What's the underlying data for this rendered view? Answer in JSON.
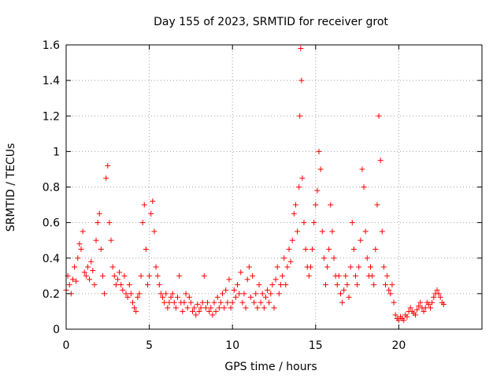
{
  "chart_data": {
    "type": "scatter",
    "title": "Day 155 of 2023, SRMTID for receiver grot",
    "xlabel": "GPS time / hours",
    "ylabel": "SRMTID / TECUs",
    "xlim": [
      0,
      25
    ],
    "ylim": [
      0,
      1.6
    ],
    "x_ticks": [
      0,
      5,
      10,
      15,
      20
    ],
    "x_tick_labels": [
      "0",
      "5",
      "10",
      "15",
      "20"
    ],
    "y_ticks": [
      0,
      0.2,
      0.4,
      0.6,
      0.8,
      1.0,
      1.2,
      1.4,
      1.6
    ],
    "y_tick_labels": [
      "0",
      "0.2",
      "0.4",
      "0.6",
      "0.8",
      "1",
      "1.2",
      "1.4",
      "1.6"
    ],
    "grid": true,
    "marker": "+",
    "marker_color": "#ff0000",
    "series": [
      {
        "name": "SRMTID",
        "x": [
          0.0,
          0.1,
          0.2,
          0.3,
          0.4,
          0.5,
          0.6,
          0.7,
          0.8,
          0.9,
          1.0,
          1.1,
          1.2,
          1.3,
          1.4,
          1.5,
          1.6,
          1.7,
          1.8,
          1.9,
          2.0,
          2.1,
          2.2,
          2.3,
          2.4,
          2.5,
          2.6,
          2.7,
          2.8,
          2.9,
          3.0,
          3.1,
          3.2,
          3.3,
          3.4,
          3.5,
          3.6,
          3.7,
          3.8,
          3.9,
          4.0,
          4.1,
          4.2,
          4.3,
          4.4,
          4.5,
          4.6,
          4.7,
          4.8,
          4.9,
          5.0,
          5.1,
          5.2,
          5.3,
          5.4,
          5.5,
          5.6,
          5.7,
          5.8,
          5.9,
          6.0,
          6.1,
          6.2,
          6.3,
          6.4,
          6.5,
          6.6,
          6.7,
          6.8,
          6.9,
          7.0,
          7.1,
          7.2,
          7.3,
          7.4,
          7.5,
          7.6,
          7.7,
          7.8,
          7.9,
          8.0,
          8.1,
          8.2,
          8.3,
          8.4,
          8.5,
          8.6,
          8.7,
          8.8,
          8.9,
          9.0,
          9.1,
          9.2,
          9.3,
          9.4,
          9.5,
          9.6,
          9.7,
          9.8,
          9.9,
          10.0,
          10.1,
          10.2,
          10.3,
          10.4,
          10.5,
          10.6,
          10.7,
          10.8,
          10.9,
          11.0,
          11.1,
          11.2,
          11.3,
          11.4,
          11.5,
          11.6,
          11.7,
          11.8,
          11.9,
          12.0,
          12.1,
          12.2,
          12.3,
          12.4,
          12.5,
          12.6,
          12.7,
          12.8,
          12.9,
          13.0,
          13.1,
          13.2,
          13.3,
          13.4,
          13.5,
          13.6,
          13.7,
          13.8,
          13.9,
          14.0,
          14.05,
          14.1,
          14.15,
          14.2,
          14.3,
          14.4,
          14.5,
          14.6,
          14.7,
          14.8,
          14.9,
          15.0,
          15.1,
          15.2,
          15.3,
          15.4,
          15.5,
          15.6,
          15.7,
          15.8,
          15.9,
          16.0,
          16.1,
          16.2,
          16.3,
          16.4,
          16.5,
          16.6,
          16.7,
          16.8,
          16.9,
          17.0,
          17.1,
          17.2,
          17.3,
          17.4,
          17.5,
          17.6,
          17.7,
          17.8,
          17.9,
          18.0,
          18.1,
          18.2,
          18.3,
          18.4,
          18.5,
          18.6,
          18.7,
          18.8,
          18.9,
          19.0,
          19.1,
          19.2,
          19.3,
          19.4,
          19.5,
          19.6,
          19.7,
          19.8,
          19.9,
          20.0,
          20.1,
          20.2,
          20.3,
          20.4,
          20.5,
          20.6,
          20.7,
          20.8,
          20.9,
          21.0,
          21.1,
          21.2,
          21.3,
          21.4,
          21.5,
          21.6,
          21.7,
          21.8,
          21.9,
          22.0,
          22.1,
          22.2,
          22.3,
          22.4,
          22.5,
          22.6,
          22.7
        ],
        "y": [
          0.22,
          0.3,
          0.25,
          0.2,
          0.28,
          0.35,
          0.27,
          0.4,
          0.48,
          0.45,
          0.55,
          0.32,
          0.3,
          0.35,
          0.28,
          0.38,
          0.33,
          0.25,
          0.5,
          0.6,
          0.65,
          0.45,
          0.3,
          0.2,
          0.85,
          0.92,
          0.6,
          0.5,
          0.35,
          0.3,
          0.25,
          0.28,
          0.32,
          0.25,
          0.22,
          0.3,
          0.2,
          0.18,
          0.25,
          0.2,
          0.15,
          0.12,
          0.1,
          0.18,
          0.2,
          0.3,
          0.6,
          0.7,
          0.45,
          0.25,
          0.3,
          0.65,
          0.72,
          0.55,
          0.35,
          0.3,
          0.25,
          0.2,
          0.18,
          0.15,
          0.2,
          0.12,
          0.15,
          0.18,
          0.2,
          0.15,
          0.12,
          0.18,
          0.3,
          0.15,
          0.1,
          0.15,
          0.2,
          0.12,
          0.18,
          0.15,
          0.1,
          0.12,
          0.08,
          0.14,
          0.1,
          0.12,
          0.15,
          0.3,
          0.12,
          0.15,
          0.1,
          0.12,
          0.08,
          0.15,
          0.1,
          0.18,
          0.12,
          0.15,
          0.2,
          0.12,
          0.22,
          0.15,
          0.28,
          0.12,
          0.15,
          0.22,
          0.18,
          0.25,
          0.2,
          0.32,
          0.15,
          0.2,
          0.12,
          0.28,
          0.35,
          0.18,
          0.3,
          0.15,
          0.2,
          0.12,
          0.25,
          0.15,
          0.2,
          0.12,
          0.18,
          0.22,
          0.15,
          0.2,
          0.25,
          0.12,
          0.28,
          0.35,
          0.2,
          0.25,
          0.3,
          0.4,
          0.25,
          0.35,
          0.45,
          0.38,
          0.5,
          0.65,
          0.7,
          0.55,
          0.8,
          1.2,
          1.58,
          1.4,
          0.85,
          0.6,
          0.45,
          0.35,
          0.3,
          0.35,
          0.45,
          0.6,
          0.7,
          0.78,
          1.0,
          0.9,
          0.55,
          0.4,
          0.25,
          0.35,
          0.45,
          0.7,
          0.55,
          0.4,
          0.3,
          0.25,
          0.3,
          0.2,
          0.15,
          0.22,
          0.3,
          0.25,
          0.18,
          0.35,
          0.6,
          0.45,
          0.3,
          0.25,
          0.35,
          0.5,
          0.9,
          0.8,
          0.55,
          0.4,
          0.3,
          0.35,
          0.3,
          0.25,
          0.45,
          0.7,
          1.2,
          0.95,
          0.55,
          0.35,
          0.25,
          0.3,
          0.22,
          0.2,
          0.25,
          0.15,
          0.08,
          0.06,
          0.05,
          0.07,
          0.06,
          0.05,
          0.08,
          0.07,
          0.1,
          0.12,
          0.1,
          0.09,
          0.08,
          0.11,
          0.13,
          0.15,
          0.12,
          0.1,
          0.12,
          0.15,
          0.14,
          0.12,
          0.15,
          0.18,
          0.2,
          0.22,
          0.2,
          0.18,
          0.15,
          0.14
        ]
      }
    ]
  }
}
